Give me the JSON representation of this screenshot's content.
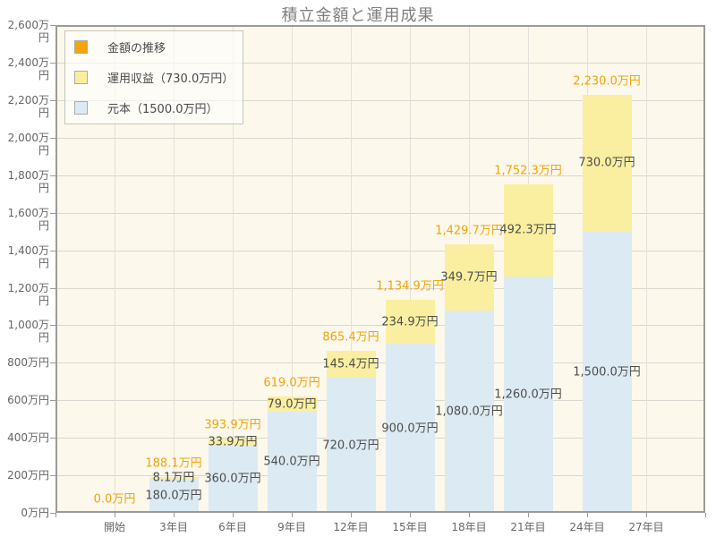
{
  "chart_data": {
    "type": "bar",
    "stacked": true,
    "title": "積立金額と運用成果",
    "unit": "万円",
    "x_axis": {
      "range_years": [
        -3,
        30
      ],
      "tick_years": [
        0,
        3,
        6,
        9,
        12,
        15,
        18,
        21,
        24,
        27
      ],
      "tick_labels": [
        "開始",
        "3年目",
        "6年目",
        "9年目",
        "12年目",
        "15年目",
        "18年目",
        "21年目",
        "24年目",
        "27年目"
      ]
    },
    "y_axis": {
      "min": 0,
      "max": 2600,
      "step": 200,
      "tick_labels": [
        "0万円",
        "200万円",
        "400万円",
        "600万円",
        "800万円",
        "1,000万円",
        "1,200万円",
        "1,400万円",
        "1,600万円",
        "1,800万円",
        "2,000万円",
        "2,200万円",
        "2,400万円",
        "2,600万円"
      ]
    },
    "series": [
      {
        "name": "元本",
        "color": "#DCEAF4",
        "values": [
          0,
          180,
          360,
          540,
          720,
          900,
          1080,
          1260,
          1500
        ]
      },
      {
        "name": "運用収益",
        "color": "#FAEFA0",
        "values": [
          0,
          8.1,
          33.9,
          79.0,
          145.4,
          234.9,
          349.7,
          492.3,
          730.0
        ]
      }
    ],
    "bars": [
      {
        "year": 0,
        "principal": 0,
        "profit": 0,
        "total": 0,
        "principal_label": "",
        "profit_label": "",
        "total_label": "0.0万円"
      },
      {
        "year": 3,
        "principal": 180,
        "profit": 8.1,
        "total": 188.1,
        "principal_label": "180.0万円",
        "profit_label": "8.1万円",
        "total_label": "188.1万円"
      },
      {
        "year": 6,
        "principal": 360,
        "profit": 33.9,
        "total": 393.9,
        "principal_label": "360.0万円",
        "profit_label": "33.9万円",
        "total_label": "393.9万円"
      },
      {
        "year": 9,
        "principal": 540,
        "profit": 79.0,
        "total": 619.0,
        "principal_label": "540.0万円",
        "profit_label": "79.0万円",
        "total_label": "619.0万円"
      },
      {
        "year": 12,
        "principal": 720,
        "profit": 145.4,
        "total": 865.4,
        "principal_label": "720.0万円",
        "profit_label": "145.4万円",
        "total_label": "865.4万円"
      },
      {
        "year": 15,
        "principal": 900,
        "profit": 234.9,
        "total": 1134.9,
        "principal_label": "900.0万円",
        "profit_label": "234.9万円",
        "total_label": "1,134.9万円"
      },
      {
        "year": 18,
        "principal": 1080,
        "profit": 349.7,
        "total": 1429.7,
        "principal_label": "1,080.0万円",
        "profit_label": "349.7万円",
        "total_label": "1,429.7万円"
      },
      {
        "year": 21,
        "principal": 1260,
        "profit": 492.3,
        "total": 1752.3,
        "principal_label": "1,260.0万円",
        "profit_label": "492.3万円",
        "total_label": "1,752.3万円"
      },
      {
        "year": 25,
        "principal": 1500,
        "profit": 730.0,
        "total": 2230.0,
        "principal_label": "1,500.0万円",
        "profit_label": "730.0万円",
        "total_label": "2,230.0万円"
      }
    ],
    "legend": {
      "position": "top-left",
      "items": [
        {
          "label": "金額の推移",
          "color": "#F7A408"
        },
        {
          "label": "運用収益（730.0万円）",
          "color": "#FAEFA0"
        },
        {
          "label": "元本（1500.0万円）",
          "color": "#DCEAF4"
        }
      ]
    },
    "grid": true,
    "style": {
      "plot_bg": "#FCF8EB",
      "axis_color": "#9B9B96",
      "grid_h_color": "#D8D8D0",
      "grid_v_color": "#E2E2DA",
      "title_color": "#808080",
      "axis_text_color": "#666666",
      "segment_label_color": "#4D4D4D",
      "total_label_color": "#F2A30A",
      "legend_bg": "rgba(255,255,255,0.6)",
      "legend_border": "#C4C4BE",
      "swatch_border": "#AAAAAA"
    }
  }
}
